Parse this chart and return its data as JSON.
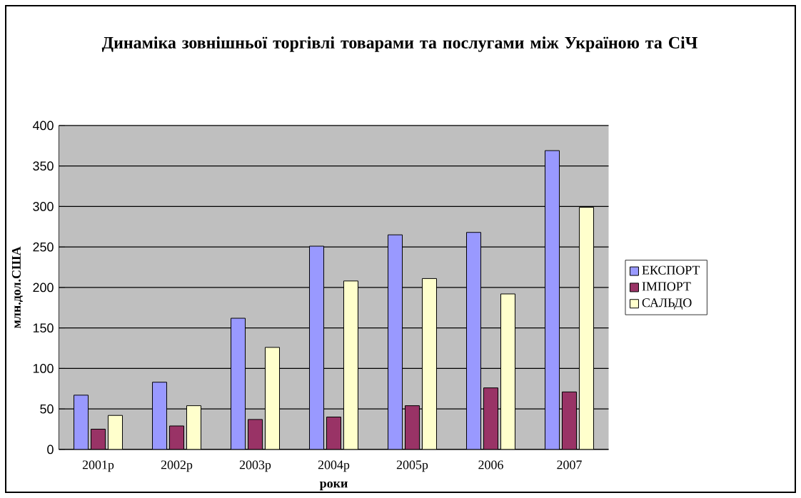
{
  "chart_data": {
    "type": "bar",
    "title": "Динаміка зовнішньої торгівлі товарами та послугами між Україною та СіЧ",
    "xlabel": "роки",
    "ylabel": "млн.дол.США",
    "categories": [
      "2001р",
      "2002р",
      "2003р",
      "2004р",
      "2005р",
      "2006",
      "2007"
    ],
    "series": [
      {
        "name": "ЕКСПОРТ",
        "color": "#9999ff",
        "values": [
          67,
          83,
          162,
          251,
          265,
          268,
          369
        ]
      },
      {
        "name": "ІМПОРТ",
        "color": "#993366",
        "values": [
          25,
          29,
          37,
          40,
          54,
          76,
          71
        ]
      },
      {
        "name": "САЛЬДО",
        "color": "#ffffcc",
        "values": [
          42,
          54,
          126,
          208,
          211,
          192,
          299
        ]
      }
    ],
    "ylim": [
      0,
      400
    ],
    "yticks": [
      0,
      50,
      100,
      150,
      200,
      250,
      300,
      350,
      400
    ],
    "grid": "y",
    "legend": "right"
  }
}
